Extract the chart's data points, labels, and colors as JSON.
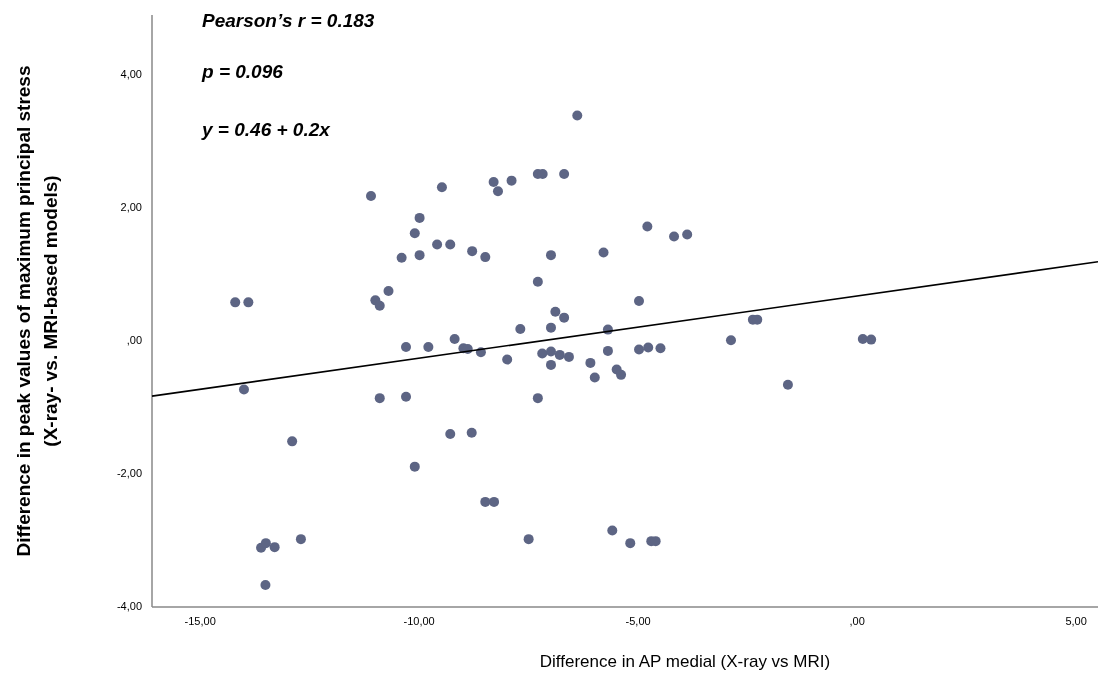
{
  "chart_data": {
    "type": "scatter",
    "xlabel": "Difference in AP medial (X-ray vs MRI)",
    "ylabel": "Difference in peak values of maximum principal stress\n(X-ray- vs. MRI-based models)",
    "annotations": [
      "Pearson’s r = 0.183",
      "p = 0.096",
      "y = 0.46 + 0.2x"
    ],
    "xlim": [
      -16.1,
      5.5
    ],
    "ylim": [
      -4,
      4.9
    ],
    "xticks": [
      {
        "value": -15,
        "label": "-15,00"
      },
      {
        "value": -10,
        "label": "-10,00"
      },
      {
        "value": -5,
        "label": "-5,00"
      },
      {
        "value": 0,
        "label": ",00"
      },
      {
        "value": 5,
        "label": "5,00"
      }
    ],
    "yticks": [
      {
        "value": -4,
        "label": "-4,00"
      },
      {
        "value": -2,
        "label": "-2,00"
      },
      {
        "value": 0,
        "label": ",00"
      },
      {
        "value": 2,
        "label": "2,00"
      },
      {
        "value": 4,
        "label": "4,00"
      }
    ],
    "grid": false,
    "series": [
      {
        "color": "#5d6584",
        "marker": "circle",
        "x": [
          -6.39,
          -11.1,
          -9.48,
          -8.3,
          -8.2,
          -7.89,
          -7.29,
          -7.18,
          -6.69,
          -9.99,
          -10.1,
          -9.59,
          -9.29,
          -10.4,
          -9.99,
          -8.79,
          -8.49,
          -6.99,
          -5.79,
          -7.29,
          -14.2,
          -13.9,
          -11.0,
          -10.9,
          -10.7,
          -6.89,
          -6.69,
          -7.69,
          -6.99,
          -5.69,
          -9.19,
          -4.79,
          -4.18,
          -3.88,
          -4.98,
          -2.38,
          -2.28,
          -2.88,
          0.13,
          0.32,
          -10.3,
          -9.79,
          -8.99,
          -8.89,
          -8.59,
          -7.99,
          -7.19,
          -6.99,
          -6.99,
          -6.79,
          -6.58,
          -6.09,
          -5.99,
          -5.69,
          -5.49,
          -5.39,
          -14.0,
          -10.9,
          -10.3,
          -7.29,
          -12.9,
          -9.29,
          -8.8,
          -10.1,
          -8.49,
          -8.29,
          -7.5,
          -5.59,
          -13.61,
          -13.5,
          -13.3,
          -12.7,
          -13.51,
          -4.98,
          -4.77,
          -4.49,
          -1.58,
          -5.18,
          -4.7,
          -4.6
        ],
        "values": [
          3.39,
          2.18,
          2.31,
          2.39,
          2.25,
          2.41,
          2.51,
          2.51,
          2.51,
          1.85,
          1.62,
          1.45,
          1.45,
          1.25,
          1.29,
          1.35,
          1.26,
          1.29,
          1.33,
          0.89,
          0.58,
          0.58,
          0.61,
          0.53,
          0.75,
          0.44,
          0.35,
          0.18,
          0.2,
          0.17,
          0.03,
          1.72,
          1.57,
          1.6,
          0.6,
          0.32,
          0.32,
          0.01,
          0.03,
          0.02,
          -0.09,
          -0.09,
          -0.11,
          -0.12,
          -0.17,
          -0.28,
          -0.19,
          -0.16,
          -0.36,
          -0.21,
          -0.24,
          -0.33,
          -0.55,
          -0.15,
          -0.43,
          -0.51,
          -0.73,
          -0.86,
          -0.84,
          -0.86,
          -1.51,
          -1.4,
          -1.38,
          -1.89,
          -2.42,
          -2.42,
          -2.98,
          -2.85,
          -3.11,
          -3.04,
          -3.1,
          -2.98,
          -3.67,
          -0.13,
          -0.1,
          -0.11,
          -0.66,
          -3.04,
          -3.01,
          -3.01
        ]
      },
      {
        "type": "line",
        "color": "#000000",
        "marker": "none",
        "x": [
          -16.1,
          5.5
        ],
        "values": [
          -0.83,
          1.19
        ]
      }
    ]
  }
}
